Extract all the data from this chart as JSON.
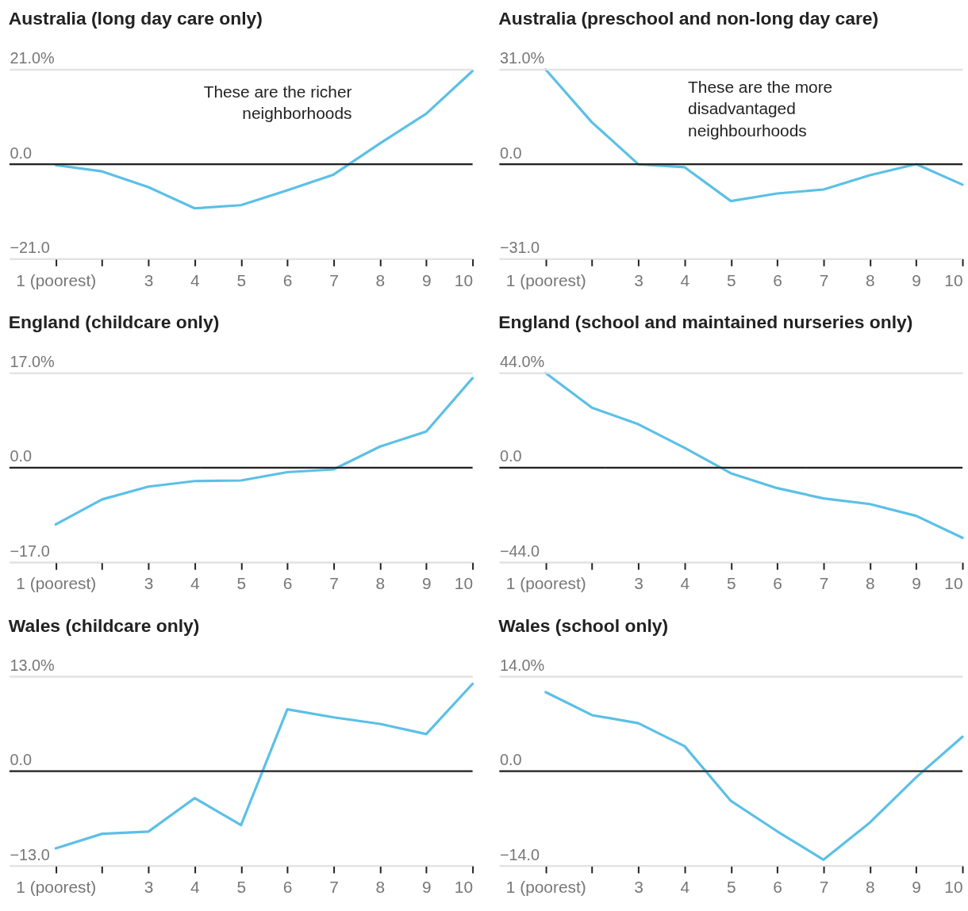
{
  "chart_data": [
    {
      "type": "line",
      "title": "Australia (long day care only)",
      "categories": [
        "1 (poorest)",
        null,
        "3",
        "4",
        "5",
        "6",
        "7",
        "8",
        "9",
        "10"
      ],
      "series": [
        {
          "color": "#5bc0e6",
          "values": [
            -0.2,
            -1.6,
            -5.1,
            -9.8,
            -9.1,
            -5.8,
            -2.3,
            4.6,
            11.2,
            20.7
          ]
        }
      ],
      "ylim": [
        -21,
        21
      ],
      "yticks": [
        {
          "value": -21,
          "label": "−21.0"
        },
        {
          "value": 0,
          "label": "0.0"
        },
        {
          "value": 21,
          "label": "21.0%"
        }
      ],
      "grid": "y",
      "ref_lines": [
        {
          "axis": "y",
          "value": 0,
          "color": "#222222"
        }
      ],
      "annotations": [
        "These are the richer\nneighborhoods"
      ]
    },
    {
      "type": "line",
      "title": "Australia (preschool and non-long day care)",
      "categories": [
        "1 (poorest)",
        null,
        "3",
        "4",
        "5",
        "6",
        "7",
        "8",
        "9",
        "10"
      ],
      "series": [
        {
          "color": "#5bc0e6",
          "values": [
            31,
            13.7,
            0,
            -1,
            -12.1,
            -9.6,
            -8.3,
            -3.6,
            0,
            -6.7
          ]
        }
      ],
      "ylim": [
        -31,
        31
      ],
      "yticks": [
        {
          "value": -31,
          "label": "−31.0"
        },
        {
          "value": 0,
          "label": "0.0"
        },
        {
          "value": 31,
          "label": "31.0%"
        }
      ],
      "grid": "y",
      "ref_lines": [
        {
          "axis": "y",
          "value": 0,
          "color": "#222222"
        }
      ],
      "annotations": [
        "These are the more\ndisadvantaged\nneighbourhoods"
      ]
    },
    {
      "type": "line",
      "title": "England (childcare only)",
      "categories": [
        "1 (poorest)",
        null,
        "3",
        "4",
        "5",
        "6",
        "7",
        "8",
        "9",
        "10"
      ],
      "series": [
        {
          "color": "#5bc0e6",
          "values": [
            -10.2,
            -5.7,
            -3.4,
            -2.4,
            -2.3,
            -0.8,
            -0.3,
            3.8,
            6.5,
            16.1
          ]
        }
      ],
      "ylim": [
        -17,
        17
      ],
      "yticks": [
        {
          "value": -17,
          "label": "−17.0"
        },
        {
          "value": 0,
          "label": "0.0"
        },
        {
          "value": 17,
          "label": "17.0%"
        }
      ],
      "grid": "y",
      "ref_lines": [
        {
          "axis": "y",
          "value": 0,
          "color": "#222222"
        }
      ]
    },
    {
      "type": "line",
      "title": "England (school and maintained nurseries only)",
      "categories": [
        "1 (poorest)",
        null,
        "3",
        "4",
        "5",
        "6",
        "7",
        "8",
        "9",
        "10"
      ],
      "series": [
        {
          "color": "#5bc0e6",
          "values": [
            44,
            27.9,
            20.2,
            9.2,
            -2.6,
            -9.5,
            -14.3,
            -16.9,
            -22.4,
            -32.6
          ]
        }
      ],
      "ylim": [
        -44,
        44
      ],
      "yticks": [
        {
          "value": -44,
          "label": "−44.0"
        },
        {
          "value": 0,
          "label": "0.0"
        },
        {
          "value": 44,
          "label": "44.0%"
        }
      ],
      "grid": "y",
      "ref_lines": [
        {
          "axis": "y",
          "value": 0,
          "color": "#222222"
        }
      ]
    },
    {
      "type": "line",
      "title": "Wales (childcare only)",
      "categories": [
        "1 (poorest)",
        null,
        "3",
        "4",
        "5",
        "6",
        "7",
        "8",
        "9",
        "10"
      ],
      "series": [
        {
          "color": "#5bc0e6",
          "values": [
            -10.6,
            -8.6,
            -8.3,
            -3.7,
            -7.4,
            8.5,
            7.4,
            6.5,
            5.1,
            12.0
          ]
        }
      ],
      "ylim": [
        -13,
        13
      ],
      "yticks": [
        {
          "value": -13,
          "label": "−13.0"
        },
        {
          "value": 0,
          "label": "0.0"
        },
        {
          "value": 13,
          "label": "13.0%"
        }
      ],
      "grid": "y",
      "ref_lines": [
        {
          "axis": "y",
          "value": 0,
          "color": "#222222"
        }
      ]
    },
    {
      "type": "line",
      "title": "Wales (school only)",
      "categories": [
        "1 (poorest)",
        null,
        "3",
        "4",
        "5",
        "6",
        "7",
        "8",
        "9",
        "10"
      ],
      "series": [
        {
          "color": "#5bc0e6",
          "values": [
            11.7,
            8.3,
            7.1,
            3.7,
            -4.4,
            -8.9,
            -13.1,
            -7.6,
            -0.9,
            5.1
          ]
        }
      ],
      "ylim": [
        -14,
        14
      ],
      "yticks": [
        {
          "value": -14,
          "label": "−14.0"
        },
        {
          "value": 0,
          "label": "0.0"
        },
        {
          "value": 14,
          "label": "14.0%"
        }
      ],
      "grid": "y",
      "ref_lines": [
        {
          "axis": "y",
          "value": 0,
          "color": "#222222"
        }
      ]
    }
  ]
}
